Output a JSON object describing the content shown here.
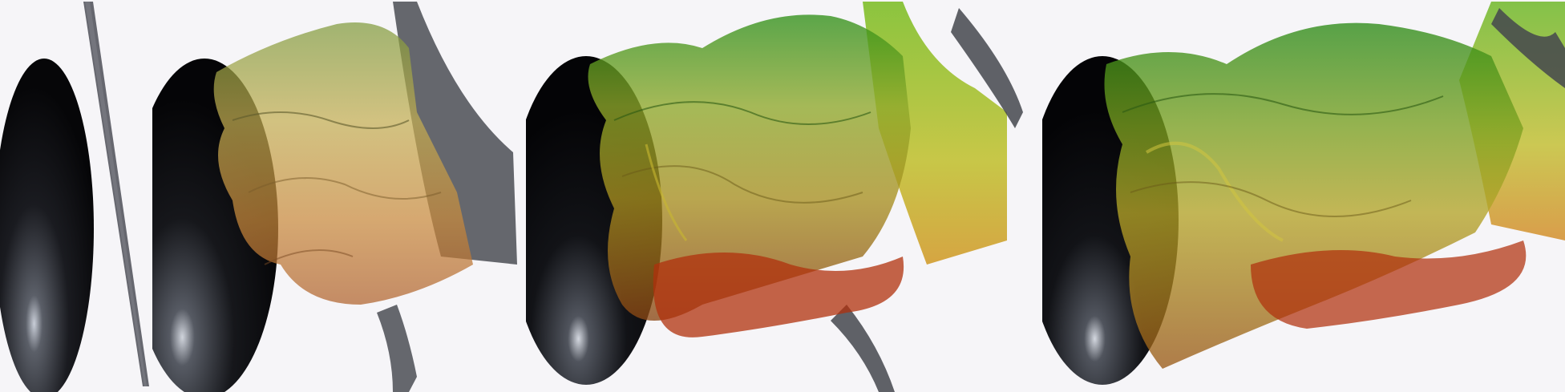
{
  "figure": {
    "panels": [
      {
        "id": "panel-1",
        "stage": 1
      },
      {
        "id": "panel-2",
        "stage": 2
      },
      {
        "id": "panel-3",
        "stage": 3
      },
      {
        "id": "panel-4",
        "stage": 4
      }
    ],
    "colors": {
      "background": "#f6f5f8",
      "ellipsoid_dark": "#0b0c10",
      "ellipsoid_highlight": "#c9ced8",
      "sheet_gray": "#5a5c63",
      "surface_green": "#2f8f18",
      "surface_yellow": "#c8b830",
      "surface_orange": "#c27022",
      "surface_red": "#b0220a"
    }
  }
}
